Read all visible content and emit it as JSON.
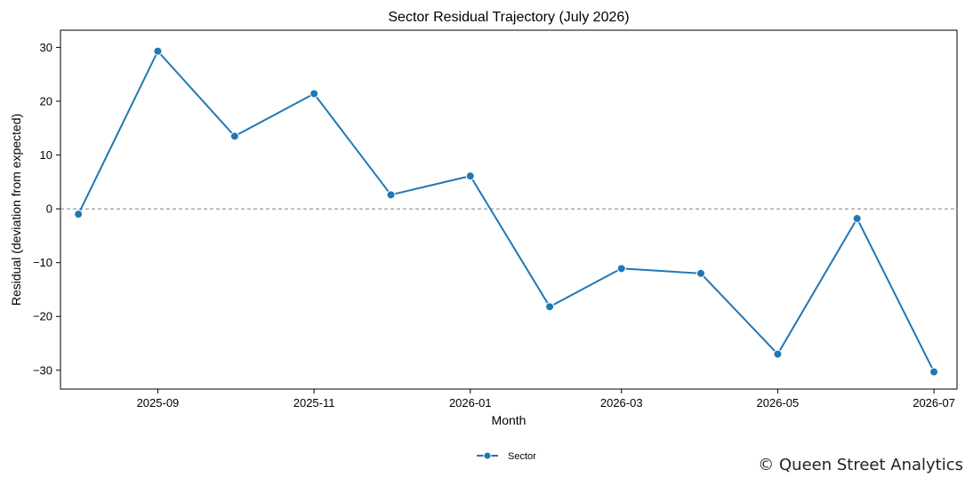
{
  "chart_data": {
    "type": "line",
    "title": "Sector Residual Trajectory (July 2026)",
    "xlabel": "Month",
    "ylabel": "Residual (deviation from expected)",
    "x_axis_type": "date",
    "xlim": [
      "2025-07-25",
      "2026-07-10"
    ],
    "ylim": [
      -33.5,
      33.2
    ],
    "x_ticks": [
      "2025-09-01",
      "2025-11-01",
      "2026-01-01",
      "2026-03-01",
      "2026-05-01",
      "2026-07-01"
    ],
    "x_tick_labels": [
      "2025-09",
      "2025-11",
      "2026-01",
      "2026-03",
      "2026-05",
      "2026-07"
    ],
    "y_ticks": [
      30,
      20,
      10,
      0,
      -10,
      -20,
      -30
    ],
    "y_tick_labels": [
      "30",
      "20",
      "10",
      "0",
      "−10",
      "−20",
      "−30"
    ],
    "reference_line": {
      "y": 0,
      "style": "dashed",
      "color": "#808080"
    },
    "grid": false,
    "legend": {
      "position": "bottom-center",
      "entries": [
        "Sector"
      ]
    },
    "series": [
      {
        "name": "Sector",
        "color": "#1f77b4",
        "marker": "circle",
        "x": [
          "2025-08-01",
          "2025-09-01",
          "2025-10-01",
          "2025-11-01",
          "2025-12-01",
          "2026-01-01",
          "2026-02-01",
          "2026-03-01",
          "2026-04-01",
          "2026-05-01",
          "2026-06-01",
          "2026-07-01"
        ],
        "values": [
          -1.0,
          29.3,
          13.5,
          21.4,
          2.6,
          6.1,
          -18.2,
          -11.1,
          -12.0,
          -27.0,
          -1.8,
          -30.3
        ]
      }
    ]
  },
  "watermark": "© Queen Street Analytics"
}
